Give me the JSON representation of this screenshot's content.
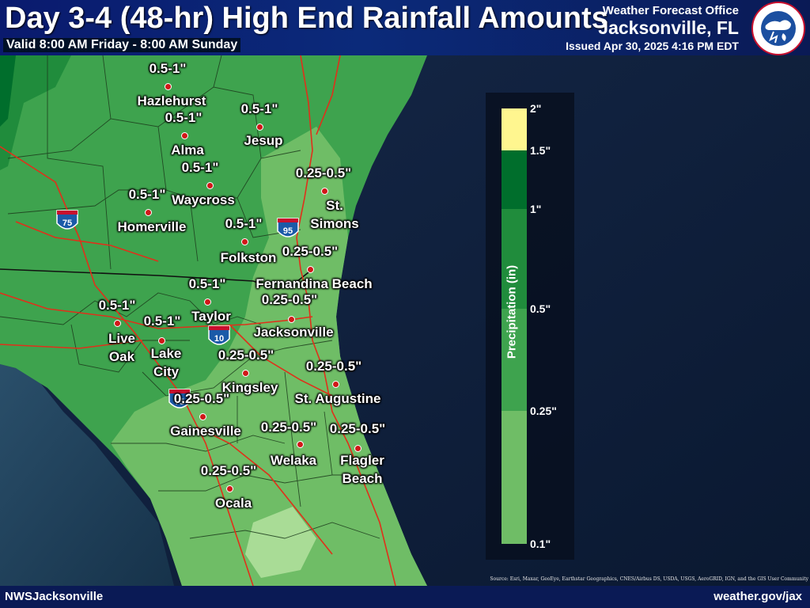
{
  "header": {
    "title": "Day 3-4 (48-hr) High End Rainfall Amounts",
    "valid": "Valid 8:00 AM Friday - 8:00 AM Sunday",
    "office_line1": "Weather Forecast Office",
    "office_line2": "Jacksonville, FL",
    "issued": "Issued Apr 30, 2025 4:16 PM EDT",
    "logo_text": "NATIONAL WEATHER SERVICE"
  },
  "footer": {
    "left": "NWSJacksonville",
    "right": "weather.gov/jax"
  },
  "source": "Source: Esri, Maxar, GeoEye, Earthstar Geographics, CNES/Airbus DS, USDA, USGS, AeroGRID, IGN, and the GIS User Community",
  "highway_shields": [
    "75",
    "95",
    "10",
    "75"
  ],
  "legend": {
    "title": "Precipitation (in)",
    "ticks": [
      "2\"",
      "1.5\"",
      "1\"",
      "0.5\"",
      "0.25\"",
      "0.1\""
    ],
    "colors": [
      "#fff68f",
      "#006e2c",
      "#208c3c",
      "#3ea34e",
      "#6fbd66",
      "#a9dc96"
    ]
  },
  "cities": [
    {
      "name": "Hazlehurst",
      "amount": "0.5-1\""
    },
    {
      "name": "Alma",
      "amount": "0.5-1\""
    },
    {
      "name": "Jesup",
      "amount": "0.5-1\""
    },
    {
      "name": "Waycross",
      "amount": "0.5-1\""
    },
    {
      "name": "St.\nSimons",
      "amount": "0.25-0.5\""
    },
    {
      "name": "Homerville",
      "amount": "0.5-1\""
    },
    {
      "name": "Folkston",
      "amount": "0.5-1\""
    },
    {
      "name": "Fernandina Beach",
      "amount": "0.25-0.5\""
    },
    {
      "name": "Taylor",
      "amount": "0.5-1\""
    },
    {
      "name": "Live\nOak",
      "amount": "0.5-1\""
    },
    {
      "name": "Lake\nCity",
      "amount": "0.5-1\""
    },
    {
      "name": "Jacksonville",
      "amount": "0.25-0.5\""
    },
    {
      "name": "Kingsley",
      "amount": "0.25-0.5\""
    },
    {
      "name": "St. Augustine",
      "amount": "0.25-0.5\""
    },
    {
      "name": "Gainesville",
      "amount": "0.25-0.5\""
    },
    {
      "name": "Welaka",
      "amount": "0.25-0.5\""
    },
    {
      "name": "Flagler\nBeach",
      "amount": "0.25-0.5\""
    },
    {
      "name": "Ocala",
      "amount": "0.25-0.5\""
    }
  ]
}
